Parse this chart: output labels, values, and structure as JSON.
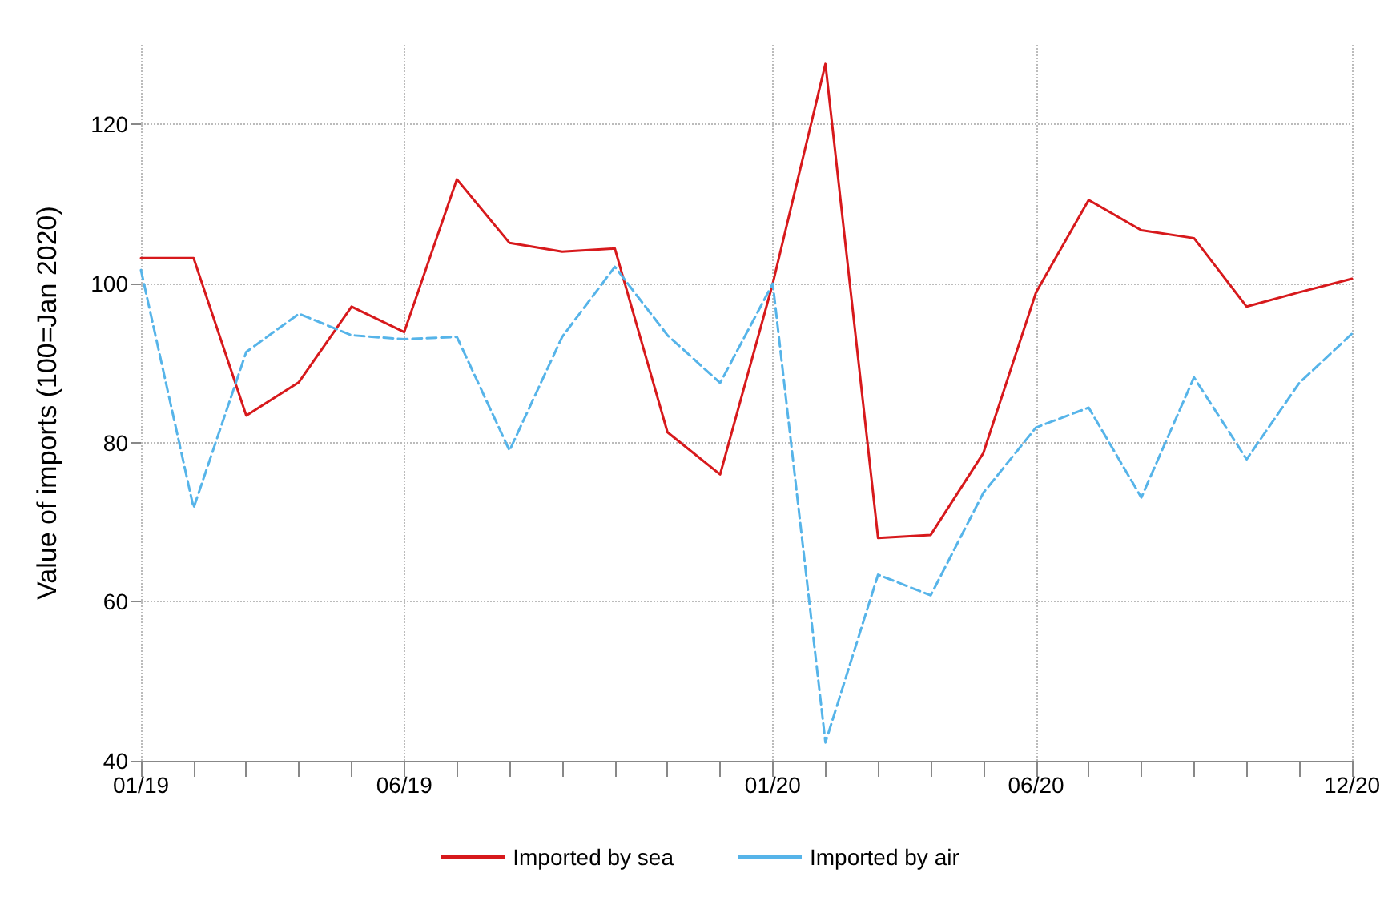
{
  "chart_data": {
    "type": "line",
    "ylabel": "Value of imports (100=Jan 2020)",
    "categories": [
      "01/19",
      null,
      null,
      null,
      null,
      "06/19",
      null,
      null,
      null,
      null,
      null,
      null,
      "01/20",
      null,
      null,
      null,
      null,
      "06/20",
      null,
      null,
      null,
      null,
      null,
      "12/20"
    ],
    "series": [
      {
        "name": "Imported by sea",
        "color": "#d7191c",
        "line_style": "solid",
        "values": [
          103.2,
          103.2,
          83.4,
          87.6,
          97.1,
          93.9,
          113.1,
          105.1,
          104.0,
          104.4,
          81.3,
          76.0,
          100,
          127.6,
          68.0,
          68.4,
          78.7,
          98.9,
          110.5,
          106.7,
          105.7,
          97.1,
          98.9,
          100.6
        ]
      },
      {
        "name": "Imported by air",
        "color": "#56b4e9",
        "line_style": "dashed",
        "values": [
          101.7,
          71.8,
          91.4,
          96.2,
          93.5,
          93.0,
          93.3,
          79.0,
          93.3,
          102.1,
          93.5,
          87.5,
          100,
          42.3,
          63.4,
          60.8,
          73.7,
          81.9,
          84.4,
          73.1,
          88.2,
          77.9,
          87.5,
          93.7
        ]
      }
    ],
    "ylim": [
      40,
      130
    ],
    "yticks": [
      40,
      60,
      80,
      100,
      120
    ],
    "grid": true,
    "legend": "bottom",
    "marker": "none"
  }
}
